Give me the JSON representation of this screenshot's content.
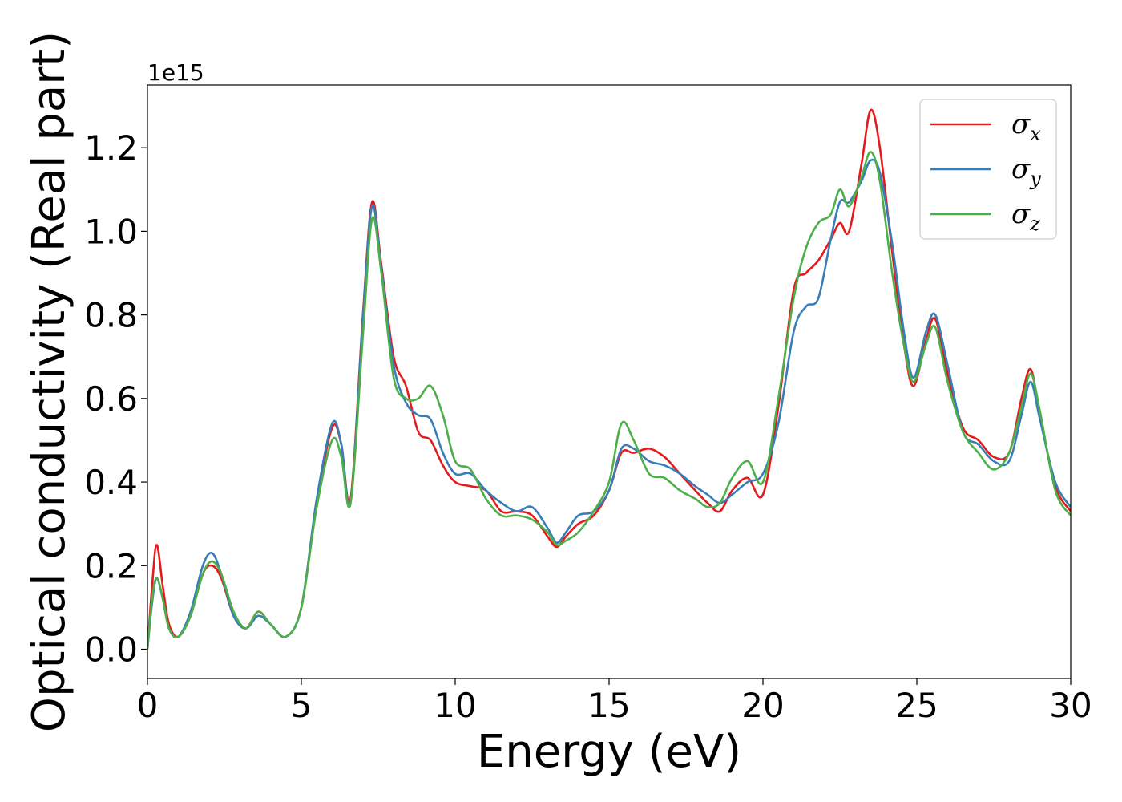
{
  "chart_data": {
    "type": "line",
    "title": "",
    "xlabel": "Energy (eV)",
    "ylabel": "Optical conductivity (Real part)",
    "y_offset_label": "1e15",
    "xlim": [
      0,
      30
    ],
    "ylim": [
      -0.07,
      1.35
    ],
    "xticks": [
      0,
      5,
      10,
      15,
      20,
      25,
      30
    ],
    "xtick_labels": [
      "0",
      "5",
      "10",
      "15",
      "20",
      "25",
      "30"
    ],
    "yticks": [
      0.0,
      0.2,
      0.4,
      0.6,
      0.8,
      1.0,
      1.2
    ],
    "ytick_labels": [
      "0.0",
      "0.2",
      "0.4",
      "0.6",
      "0.8",
      "1.0",
      "1.2"
    ],
    "grid": false,
    "legend_position": "top-right",
    "series": [
      {
        "name": "σx",
        "legend_symbol": "σ",
        "legend_sub": "x",
        "color": "#e41a1c",
        "x": [
          0,
          0.15,
          0.3,
          0.5,
          0.7,
          1.0,
          1.4,
          1.8,
          2.1,
          2.4,
          2.8,
          3.2,
          3.6,
          4.0,
          4.5,
          5.0,
          5.5,
          6.0,
          6.3,
          6.6,
          7.0,
          7.3,
          7.6,
          8.0,
          8.4,
          8.8,
          9.2,
          9.6,
          10.0,
          10.5,
          11.0,
          11.5,
          12.0,
          12.5,
          13.0,
          13.3,
          13.6,
          14.0,
          14.5,
          15.0,
          15.4,
          15.8,
          16.3,
          16.8,
          17.3,
          17.8,
          18.2,
          18.6,
          19.0,
          19.5,
          20.0,
          20.5,
          21.0,
          21.4,
          21.8,
          22.2,
          22.5,
          22.8,
          23.2,
          23.5,
          23.8,
          24.2,
          24.6,
          24.9,
          25.3,
          25.6,
          26.0,
          26.5,
          27.0,
          27.5,
          28.0,
          28.4,
          28.7,
          29.0,
          29.5,
          30.0
        ],
        "values": [
          0.0,
          0.15,
          0.25,
          0.15,
          0.06,
          0.03,
          0.08,
          0.18,
          0.2,
          0.17,
          0.08,
          0.05,
          0.09,
          0.06,
          0.03,
          0.1,
          0.35,
          0.53,
          0.49,
          0.36,
          0.8,
          1.07,
          0.92,
          0.7,
          0.63,
          0.52,
          0.5,
          0.44,
          0.4,
          0.39,
          0.38,
          0.33,
          0.33,
          0.32,
          0.27,
          0.245,
          0.27,
          0.3,
          0.32,
          0.38,
          0.47,
          0.47,
          0.48,
          0.46,
          0.42,
          0.38,
          0.35,
          0.33,
          0.38,
          0.41,
          0.37,
          0.58,
          0.86,
          0.9,
          0.93,
          0.98,
          1.02,
          1.0,
          1.16,
          1.29,
          1.2,
          0.95,
          0.72,
          0.63,
          0.74,
          0.79,
          0.66,
          0.53,
          0.5,
          0.46,
          0.47,
          0.6,
          0.67,
          0.56,
          0.39,
          0.33
        ]
      },
      {
        "name": "σy",
        "legend_symbol": "σ",
        "legend_sub": "y",
        "color": "#377eb8",
        "x": [
          0,
          0.15,
          0.3,
          0.5,
          0.7,
          1.0,
          1.4,
          1.8,
          2.1,
          2.4,
          2.8,
          3.2,
          3.6,
          4.0,
          4.5,
          5.0,
          5.5,
          6.0,
          6.3,
          6.6,
          7.0,
          7.3,
          7.6,
          8.0,
          8.4,
          8.8,
          9.2,
          9.6,
          10.0,
          10.5,
          11.0,
          11.5,
          12.0,
          12.5,
          13.0,
          13.3,
          13.6,
          14.0,
          14.5,
          15.0,
          15.4,
          15.8,
          16.3,
          16.8,
          17.3,
          17.8,
          18.2,
          18.6,
          19.0,
          19.5,
          20.0,
          20.5,
          21.0,
          21.4,
          21.8,
          22.2,
          22.5,
          22.8,
          23.2,
          23.5,
          23.8,
          24.2,
          24.6,
          24.9,
          25.3,
          25.6,
          26.0,
          26.5,
          27.0,
          27.5,
          28.0,
          28.4,
          28.7,
          29.0,
          29.5,
          30.0
        ],
        "values": [
          0.0,
          0.11,
          0.17,
          0.12,
          0.05,
          0.03,
          0.09,
          0.2,
          0.23,
          0.18,
          0.08,
          0.05,
          0.08,
          0.06,
          0.03,
          0.1,
          0.36,
          0.54,
          0.49,
          0.35,
          0.79,
          1.06,
          0.91,
          0.68,
          0.59,
          0.56,
          0.55,
          0.47,
          0.42,
          0.42,
          0.38,
          0.35,
          0.33,
          0.34,
          0.29,
          0.255,
          0.28,
          0.32,
          0.33,
          0.38,
          0.48,
          0.48,
          0.45,
          0.44,
          0.42,
          0.39,
          0.37,
          0.35,
          0.37,
          0.4,
          0.42,
          0.54,
          0.76,
          0.82,
          0.84,
          0.98,
          1.07,
          1.07,
          1.12,
          1.17,
          1.14,
          0.97,
          0.75,
          0.65,
          0.76,
          0.8,
          0.68,
          0.52,
          0.49,
          0.45,
          0.45,
          0.56,
          0.64,
          0.55,
          0.4,
          0.34
        ]
      },
      {
        "name": "σz",
        "legend_symbol": "σ",
        "legend_sub": "z",
        "color": "#4daf4a",
        "x": [
          0,
          0.15,
          0.3,
          0.5,
          0.7,
          1.0,
          1.4,
          1.8,
          2.1,
          2.4,
          2.8,
          3.2,
          3.6,
          4.0,
          4.5,
          5.0,
          5.5,
          6.0,
          6.3,
          6.6,
          7.0,
          7.3,
          7.6,
          8.0,
          8.4,
          8.8,
          9.2,
          9.6,
          10.0,
          10.5,
          11.0,
          11.5,
          12.0,
          12.5,
          13.0,
          13.3,
          13.6,
          14.0,
          14.5,
          15.0,
          15.4,
          15.8,
          16.3,
          16.8,
          17.3,
          17.8,
          18.2,
          18.6,
          19.0,
          19.5,
          20.0,
          20.5,
          21.0,
          21.4,
          21.8,
          22.2,
          22.5,
          22.8,
          23.2,
          23.5,
          23.8,
          24.2,
          24.6,
          24.9,
          25.3,
          25.6,
          26.0,
          26.5,
          27.0,
          27.5,
          28.0,
          28.4,
          28.7,
          29.0,
          29.5,
          30.0
        ],
        "values": [
          0.0,
          0.12,
          0.17,
          0.12,
          0.05,
          0.03,
          0.08,
          0.18,
          0.21,
          0.18,
          0.09,
          0.05,
          0.09,
          0.06,
          0.03,
          0.1,
          0.34,
          0.5,
          0.46,
          0.35,
          0.75,
          1.03,
          0.9,
          0.65,
          0.6,
          0.6,
          0.63,
          0.56,
          0.45,
          0.43,
          0.36,
          0.32,
          0.32,
          0.31,
          0.28,
          0.25,
          0.26,
          0.28,
          0.33,
          0.4,
          0.54,
          0.5,
          0.42,
          0.41,
          0.38,
          0.36,
          0.34,
          0.35,
          0.41,
          0.45,
          0.4,
          0.6,
          0.84,
          0.96,
          1.02,
          1.04,
          1.1,
          1.06,
          1.13,
          1.19,
          1.12,
          0.9,
          0.72,
          0.64,
          0.73,
          0.77,
          0.64,
          0.52,
          0.47,
          0.43,
          0.47,
          0.58,
          0.66,
          0.57,
          0.38,
          0.32
        ]
      }
    ]
  }
}
